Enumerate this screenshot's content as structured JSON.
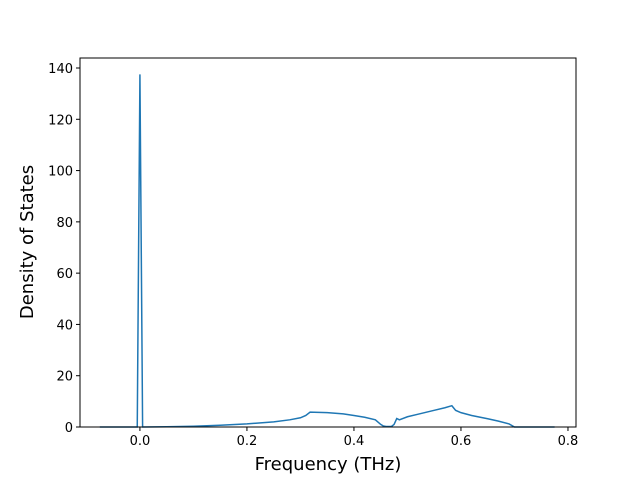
{
  "chart_data": {
    "type": "line",
    "xlabel": "Frequency (THz)",
    "ylabel": "Density of States",
    "x": [
      -0.075,
      -0.005,
      0.0,
      0.005,
      0.05,
      0.1,
      0.15,
      0.2,
      0.25,
      0.28,
      0.3,
      0.31,
      0.318,
      0.35,
      0.38,
      0.4,
      0.42,
      0.44,
      0.45,
      0.455,
      0.46,
      0.47,
      0.475,
      0.48,
      0.485,
      0.5,
      0.52,
      0.55,
      0.57,
      0.583,
      0.59,
      0.6,
      0.62,
      0.65,
      0.67,
      0.69,
      0.7,
      0.775
    ],
    "series": [
      {
        "color": "#1f77b4",
        "values": [
          0,
          0,
          137.5,
          0,
          0.1,
          0.3,
          0.7,
          1.2,
          2.0,
          2.8,
          3.6,
          4.5,
          5.8,
          5.6,
          5.1,
          4.5,
          3.8,
          2.8,
          1.0,
          0.4,
          0.2,
          0.2,
          1.0,
          3.3,
          2.8,
          4.0,
          5.0,
          6.5,
          7.5,
          8.3,
          6.5,
          5.6,
          4.5,
          3.2,
          2.3,
          1.2,
          0,
          0
        ]
      }
    ],
    "xlim": [
      -0.112,
      0.815
    ],
    "ylim": [
      0,
      143.9
    ],
    "xticks": [
      {
        "value": 0,
        "label": "0.0"
      },
      0.2,
      0.4,
      0.6,
      0.8
    ],
    "yticks": [
      0,
      20,
      40,
      60,
      80,
      100,
      120,
      140
    ]
  }
}
